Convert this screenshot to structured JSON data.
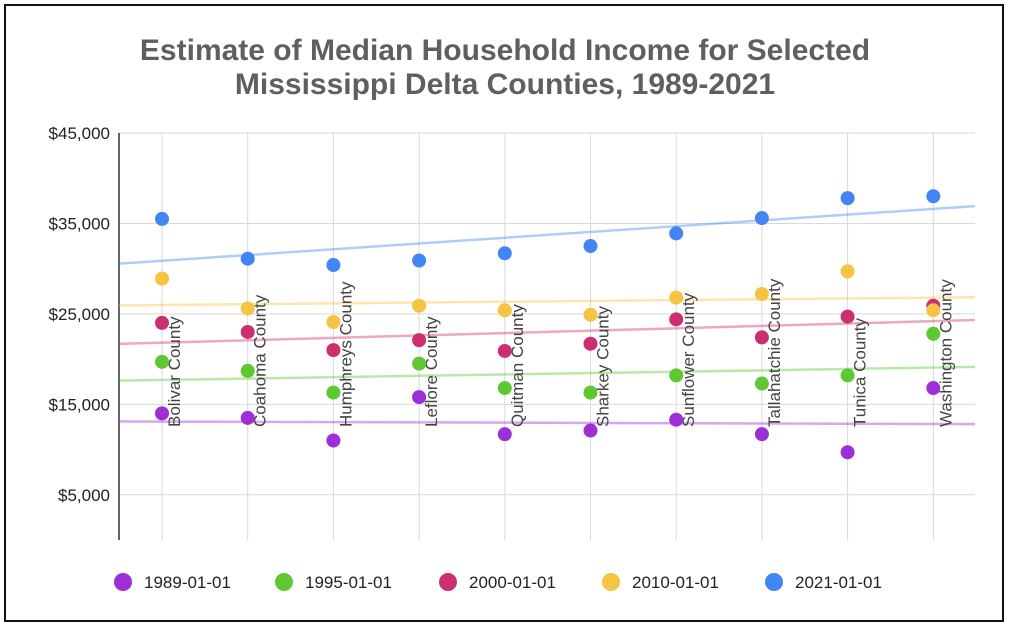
{
  "chart_data": {
    "type": "scatter",
    "title_lines": [
      "Estimate of Median Household Income for Selected",
      "Mississippi Delta Counties, 1989-2021"
    ],
    "xlabel": "",
    "ylabel": "",
    "categories": [
      "Bolivar County",
      "Coahoma County",
      "Humphreys County",
      "Leflore County",
      "Quitman County",
      "Sharkey County",
      "Sunflower County",
      "Tallahatchie County",
      "Tunica County",
      "Washington County"
    ],
    "yticks": [
      "$5,000",
      "$15,000",
      "$25,000",
      "$35,000",
      "$45,000"
    ],
    "ytick_values": [
      5000,
      15000,
      25000,
      35000,
      45000
    ],
    "ylim": [
      0,
      45000
    ],
    "grid": true,
    "legend_position": "bottom",
    "trendlines": true,
    "series": [
      {
        "name": "1989-01-01",
        "color": "#9c2fd6",
        "values": [
          14000,
          13500,
          11000,
          15800,
          11700,
          12100,
          13300,
          11700,
          9700,
          16800
        ]
      },
      {
        "name": "1995-01-01",
        "color": "#5ec832",
        "values": [
          19700,
          18700,
          16300,
          19500,
          16800,
          16300,
          18200,
          17300,
          18200,
          22800
        ]
      },
      {
        "name": "2000-01-01",
        "color": "#cc2f6f",
        "values": [
          24000,
          23000,
          21000,
          22100,
          20900,
          21700,
          24400,
          22400,
          24700,
          25900
        ]
      },
      {
        "name": "2010-01-01",
        "color": "#f6c343",
        "values": [
          28900,
          25600,
          24100,
          25900,
          25400,
          24900,
          26800,
          27200,
          29700,
          25400
        ]
      },
      {
        "name": "2021-01-01",
        "color": "#4285f4",
        "values": [
          35500,
          31100,
          30400,
          30900,
          31700,
          32500,
          33900,
          35600,
          37800,
          38000
        ]
      }
    ]
  }
}
